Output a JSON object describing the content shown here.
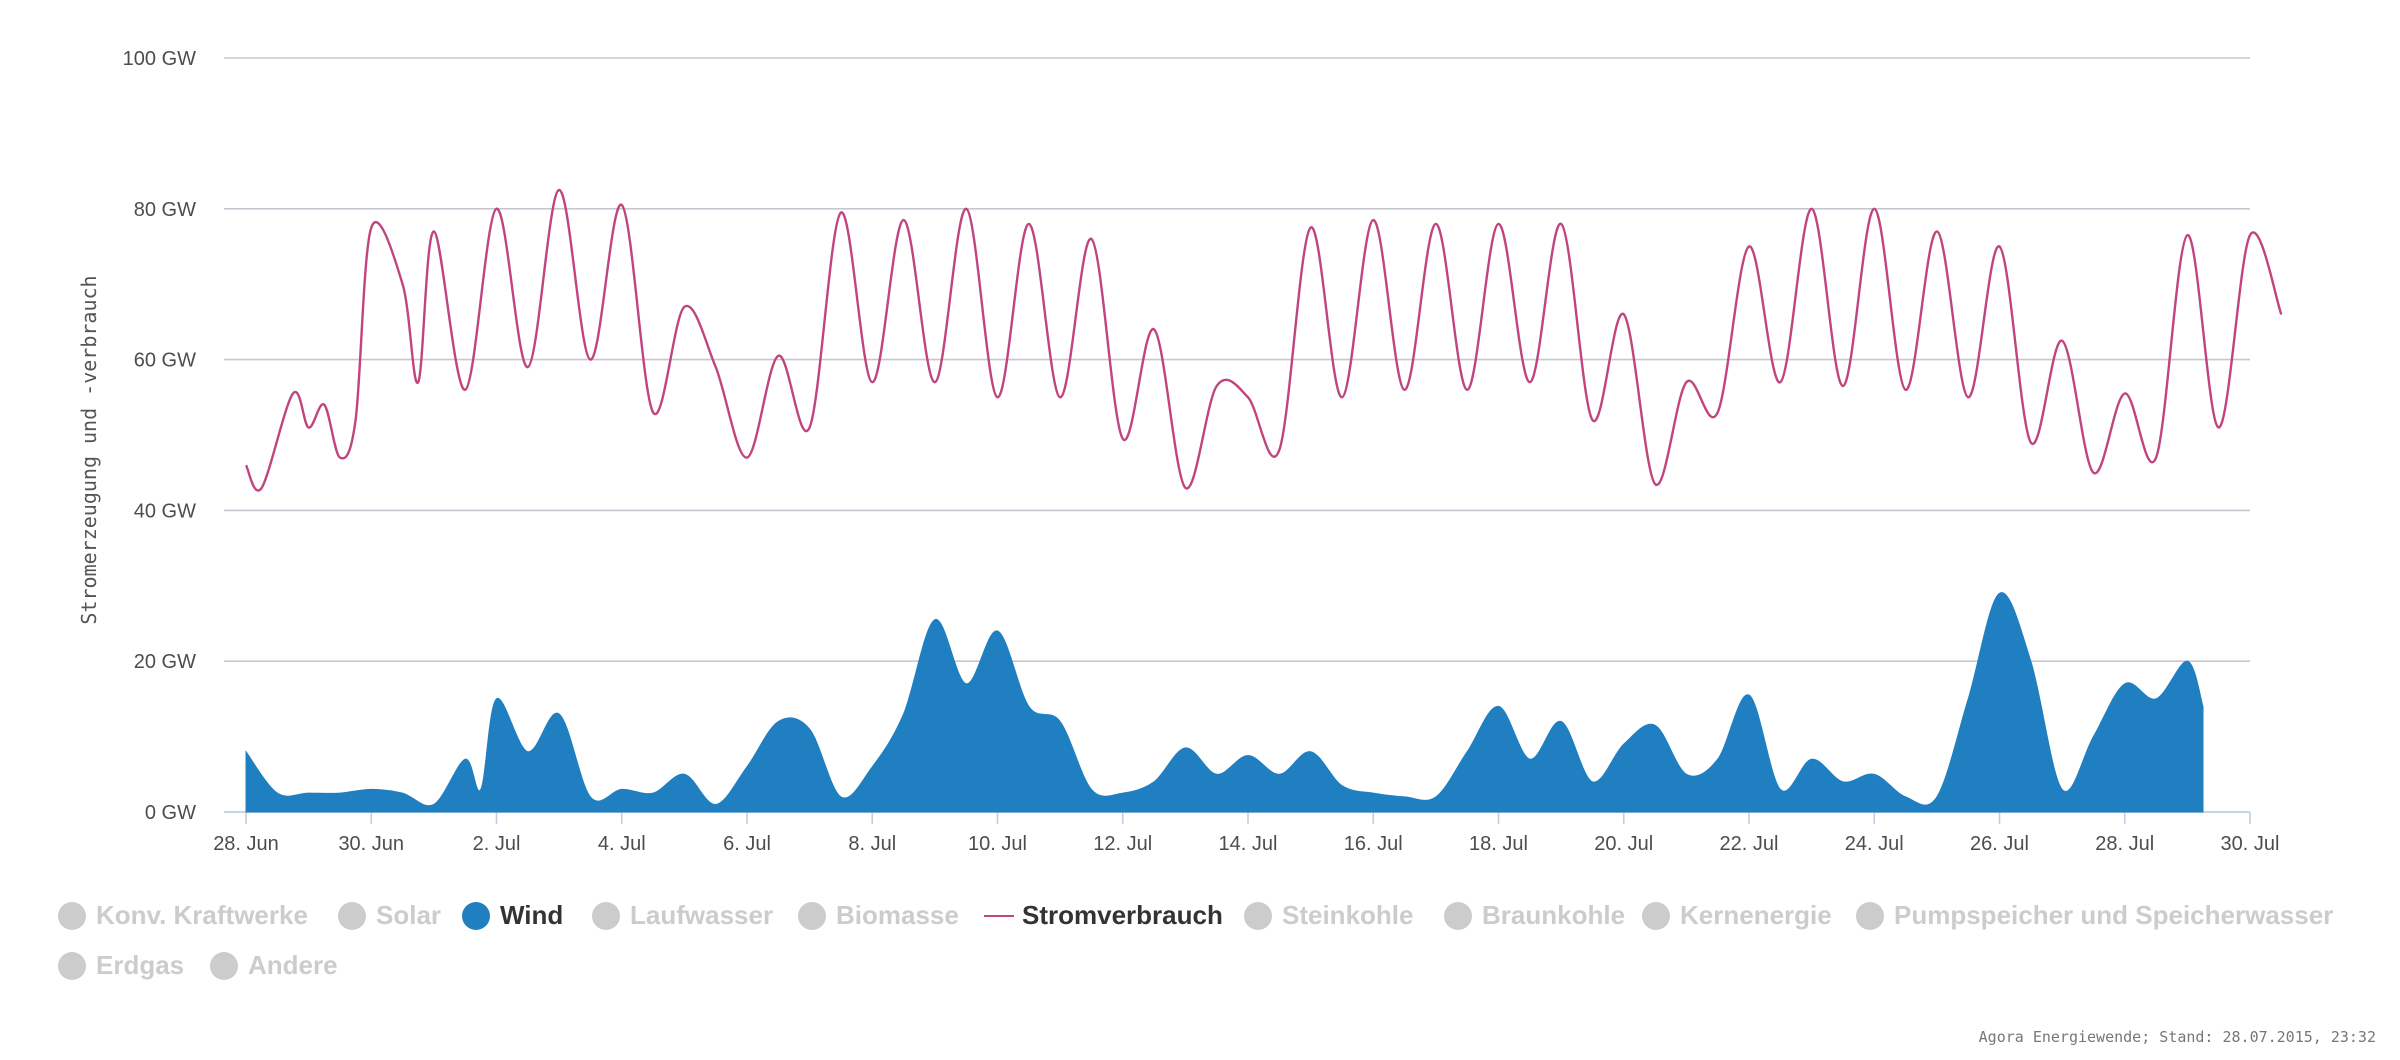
{
  "chart_data": {
    "type": "line",
    "title": "",
    "ylabel": "Stromerzeugung und -verbrauch",
    "xlabel": "",
    "x_range": [
      "2015-06-28",
      "2015-07-30"
    ],
    "ylim": [
      0,
      100
    ],
    "y_ticks": [
      "0 GW",
      "20 GW",
      "40 GW",
      "60 GW",
      "80 GW",
      "100 GW"
    ],
    "x_ticks": [
      "28. Jun",
      "30. Jun",
      "2. Jul",
      "4. Jul",
      "6. Jul",
      "8. Jul",
      "10. Jul",
      "12. Jul",
      "14. Jul",
      "16. Jul",
      "18. Jul",
      "20. Jul",
      "22. Jul",
      "24. Jul",
      "26. Jul",
      "28. Jul",
      "30. Jul"
    ],
    "grid": true,
    "legend_position": "bottom",
    "series": [
      {
        "name": "Wind",
        "type": "area",
        "color": "#1f7fc1",
        "points": [
          [
            "2015-06-28",
            8
          ],
          [
            "2015-06-28 12:00",
            2.5
          ],
          [
            "2015-06-29 00:00",
            2.5
          ],
          [
            "2015-06-29 12:00",
            2.5
          ],
          [
            "2015-06-30 00:00",
            3
          ],
          [
            "2015-06-30 12:00",
            2.5
          ],
          [
            "2015-07-01 00:00",
            1
          ],
          [
            "2015-07-01 12:00",
            7
          ],
          [
            "2015-07-01 18:00",
            3
          ],
          [
            "2015-07-02 00:00",
            15
          ],
          [
            "2015-07-02 12:00",
            8
          ],
          [
            "2015-07-03 00:00",
            13
          ],
          [
            "2015-07-03 12:00",
            2
          ],
          [
            "2015-07-04 00:00",
            3
          ],
          [
            "2015-07-04 12:00",
            2.5
          ],
          [
            "2015-07-05 00:00",
            5
          ],
          [
            "2015-07-05 12:00",
            1
          ],
          [
            "2015-07-06 00:00",
            6
          ],
          [
            "2015-07-06 12:00",
            12
          ],
          [
            "2015-07-07 00:00",
            11
          ],
          [
            "2015-07-07 12:00",
            2
          ],
          [
            "2015-07-08 00:00",
            6
          ],
          [
            "2015-07-08 12:00",
            13
          ],
          [
            "2015-07-09 00:00",
            25.5
          ],
          [
            "2015-07-09 12:00",
            17
          ],
          [
            "2015-07-10 00:00",
            24
          ],
          [
            "2015-07-10 12:00",
            14
          ],
          [
            "2015-07-11 00:00",
            12
          ],
          [
            "2015-07-11 12:00",
            3
          ],
          [
            "2015-07-12 00:00",
            2.5
          ],
          [
            "2015-07-12 12:00",
            4
          ],
          [
            "2015-07-13 00:00",
            8.5
          ],
          [
            "2015-07-13 12:00",
            5
          ],
          [
            "2015-07-14 00:00",
            7.5
          ],
          [
            "2015-07-14 12:00",
            5
          ],
          [
            "2015-07-15 00:00",
            8
          ],
          [
            "2015-07-15 12:00",
            3.5
          ],
          [
            "2015-07-16 00:00",
            2.5
          ],
          [
            "2015-07-16 12:00",
            2
          ],
          [
            "2015-07-17 00:00",
            2
          ],
          [
            "2015-07-17 12:00",
            8
          ],
          [
            "2015-07-18 00:00",
            14
          ],
          [
            "2015-07-18 12:00",
            7
          ],
          [
            "2015-07-19 00:00",
            12
          ],
          [
            "2015-07-19 12:00",
            4
          ],
          [
            "2015-07-20 00:00",
            9
          ],
          [
            "2015-07-20 12:00",
            11.5
          ],
          [
            "2015-07-21 00:00",
            5
          ],
          [
            "2015-07-21 12:00",
            7
          ],
          [
            "2015-07-22 00:00",
            15.5
          ],
          [
            "2015-07-22 12:00",
            3
          ],
          [
            "2015-07-23 00:00",
            7
          ],
          [
            "2015-07-23 12:00",
            4
          ],
          [
            "2015-07-24 00:00",
            5
          ],
          [
            "2015-07-24 12:00",
            2
          ],
          [
            "2015-07-25 00:00",
            2
          ],
          [
            "2015-07-25 12:00",
            15
          ],
          [
            "2015-07-26 00:00",
            29
          ],
          [
            "2015-07-26 12:00",
            20
          ],
          [
            "2015-07-27 00:00",
            3
          ],
          [
            "2015-07-27 12:00",
            10
          ],
          [
            "2015-07-28 00:00",
            17
          ],
          [
            "2015-07-28 12:00",
            15
          ],
          [
            "2015-07-29 00:00",
            20
          ],
          [
            "2015-07-29 06:00",
            14
          ]
        ]
      },
      {
        "name": "Stromverbrauch",
        "type": "line",
        "color": "#c0457e",
        "points": [
          [
            "2015-06-28 00:00",
            46
          ],
          [
            "2015-06-28 06:00",
            43
          ],
          [
            "2015-06-28 18:00",
            55.5
          ],
          [
            "2015-06-29 00:00",
            51
          ],
          [
            "2015-06-29 06:00",
            54
          ],
          [
            "2015-06-29 12:00",
            47
          ],
          [
            "2015-06-29 18:00",
            52
          ],
          [
            "2015-06-30 00:00",
            77.5
          ],
          [
            "2015-06-30 12:00",
            70
          ],
          [
            "2015-06-30 18:00",
            57
          ],
          [
            "2015-07-01 00:00",
            77
          ],
          [
            "2015-07-01 12:00",
            56
          ],
          [
            "2015-07-02 00:00",
            80
          ],
          [
            "2015-07-02 12:00",
            59
          ],
          [
            "2015-07-03 00:00",
            82.5
          ],
          [
            "2015-07-03 12:00",
            60
          ],
          [
            "2015-07-04 00:00",
            80.5
          ],
          [
            "2015-07-04 12:00",
            53
          ],
          [
            "2015-07-05 00:00",
            67
          ],
          [
            "2015-07-05 12:00",
            59
          ],
          [
            "2015-07-06 00:00",
            47
          ],
          [
            "2015-07-06 12:00",
            60.5
          ],
          [
            "2015-07-07 00:00",
            51
          ],
          [
            "2015-07-07 12:00",
            79.5
          ],
          [
            "2015-07-08 00:00",
            57
          ],
          [
            "2015-07-08 12:00",
            78.5
          ],
          [
            "2015-07-09 00:00",
            57
          ],
          [
            "2015-07-09 12:00",
            80
          ],
          [
            "2015-07-10 00:00",
            55
          ],
          [
            "2015-07-10 12:00",
            78
          ],
          [
            "2015-07-11 00:00",
            55
          ],
          [
            "2015-07-11 12:00",
            76
          ],
          [
            "2015-07-12 00:00",
            49.5
          ],
          [
            "2015-07-12 12:00",
            64
          ],
          [
            "2015-07-13 00:00",
            43
          ],
          [
            "2015-07-13 12:00",
            56.5
          ],
          [
            "2015-07-14 00:00",
            55
          ],
          [
            "2015-07-14 12:00",
            48
          ],
          [
            "2015-07-15 00:00",
            77.5
          ],
          [
            "2015-07-15 12:00",
            55
          ],
          [
            "2015-07-16 00:00",
            78.5
          ],
          [
            "2015-07-16 12:00",
            56
          ],
          [
            "2015-07-17 00:00",
            78
          ],
          [
            "2015-07-17 12:00",
            56
          ],
          [
            "2015-07-18 00:00",
            78
          ],
          [
            "2015-07-18 12:00",
            57
          ],
          [
            "2015-07-19 00:00",
            78
          ],
          [
            "2015-07-19 12:00",
            52
          ],
          [
            "2015-07-20 00:00",
            66
          ],
          [
            "2015-07-20 12:00",
            43.5
          ],
          [
            "2015-07-21 00:00",
            57
          ],
          [
            "2015-07-21 12:00",
            53
          ],
          [
            "2015-07-22 00:00",
            75
          ],
          [
            "2015-07-22 12:00",
            57
          ],
          [
            "2015-07-23 00:00",
            80
          ],
          [
            "2015-07-23 12:00",
            56.5
          ],
          [
            "2015-07-24 00:00",
            80
          ],
          [
            "2015-07-24 12:00",
            56
          ],
          [
            "2015-07-25 00:00",
            77
          ],
          [
            "2015-07-25 12:00",
            55
          ],
          [
            "2015-07-26 00:00",
            75
          ],
          [
            "2015-07-26 12:00",
            49
          ],
          [
            "2015-07-27 00:00",
            62.5
          ],
          [
            "2015-07-27 12:00",
            45
          ],
          [
            "2015-07-28 00:00",
            55.5
          ],
          [
            "2015-07-28 12:00",
            47
          ],
          [
            "2015-07-29 00:00",
            76.5
          ],
          [
            "2015-07-29 12:00",
            51
          ],
          [
            "2015-07-30 00:00",
            76.5
          ],
          [
            "2015-07-30 12:00",
            66
          ]
        ]
      }
    ]
  },
  "legend": {
    "items": [
      {
        "label": "Konv. Kraftwerke",
        "active": false,
        "marker": "circle"
      },
      {
        "label": "Solar",
        "active": false,
        "marker": "circle"
      },
      {
        "label": "Wind",
        "active": true,
        "marker": "circle",
        "color": "#1f7fc1"
      },
      {
        "label": "Laufwasser",
        "active": false,
        "marker": "circle"
      },
      {
        "label": "Biomasse",
        "active": false,
        "marker": "circle"
      },
      {
        "label": "Stromverbrauch",
        "active": true,
        "marker": "line",
        "color": "#c0457e"
      },
      {
        "label": "Steinkohle",
        "active": false,
        "marker": "circle"
      },
      {
        "label": "Braunkohle",
        "active": false,
        "marker": "circle"
      },
      {
        "label": "Kernenergie",
        "active": false,
        "marker": "circle"
      },
      {
        "label": "Pumpspeicher und Speicherwasser",
        "active": false,
        "marker": "circle"
      },
      {
        "label": "Erdgas",
        "active": false,
        "marker": "circle"
      },
      {
        "label": "Andere",
        "active": false,
        "marker": "circle"
      }
    ]
  },
  "credits": "Agora Energiewende; Stand: 28.07.2015, 23:32"
}
